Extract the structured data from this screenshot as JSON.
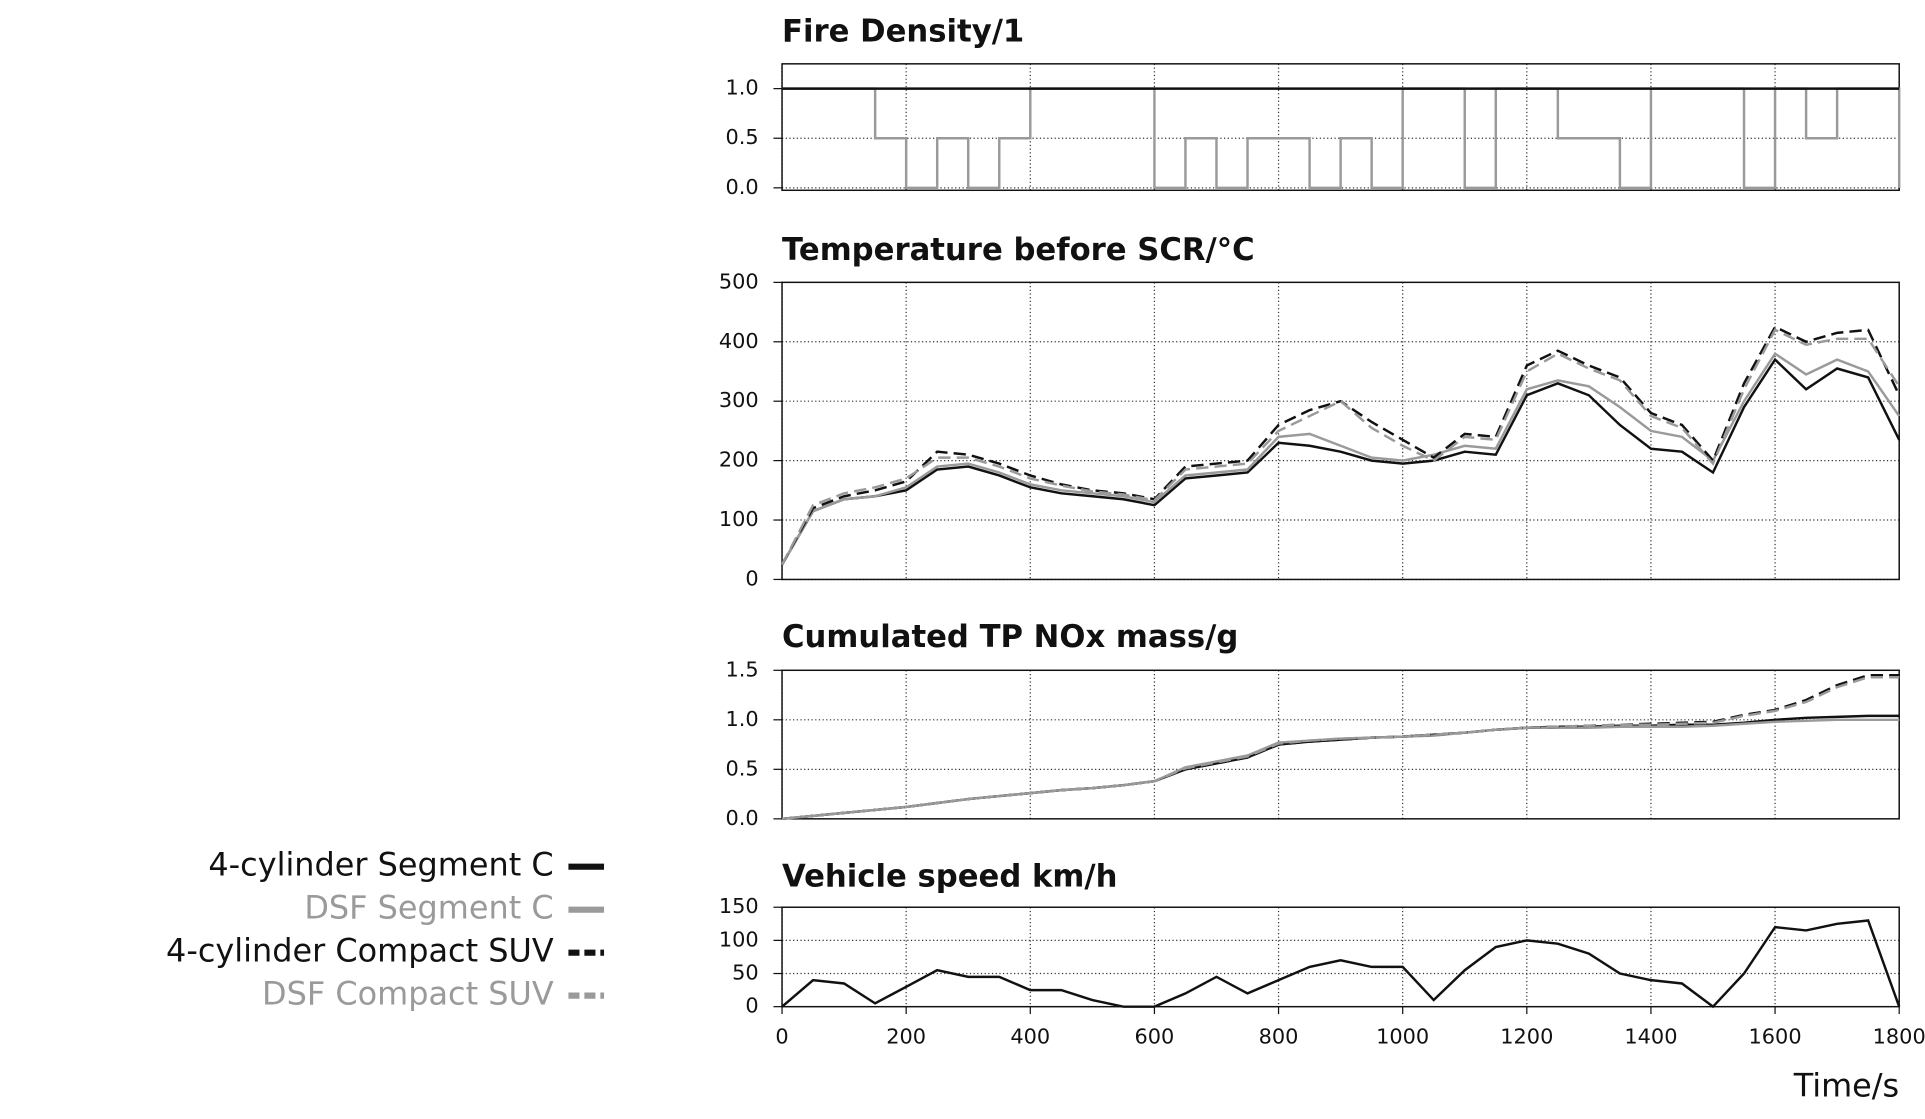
{
  "chart_data": {
    "type": "line",
    "xlabel": "Time/s",
    "xlim": [
      0,
      1800
    ],
    "xticks": [
      0,
      200,
      400,
      600,
      800,
      1000,
      1200,
      1400,
      1600,
      1800
    ],
    "grid": true,
    "charts": [
      {
        "title": "Fire Density/1",
        "ylim": [
          0,
          1.25
        ],
        "steps": true,
        "yticks": [
          {
            "value": 0,
            "label": "0.0"
          },
          {
            "value": 0.5,
            "label": "0.5"
          },
          {
            "value": 1,
            "label": "1.0"
          }
        ],
        "x": [
          0,
          50,
          100,
          150,
          200,
          250,
          300,
          350,
          400,
          450,
          500,
          550,
          600,
          650,
          700,
          750,
          800,
          850,
          900,
          950,
          1000,
          1050,
          1100,
          1150,
          1200,
          1250,
          1300,
          1350,
          1400,
          1450,
          1500,
          1550,
          1600,
          1650,
          1700,
          1750,
          1800
        ],
        "series": [
          {
            "color": "#9a9a9a",
            "dash": false,
            "values": [
              1,
              1,
              1,
              0.5,
              0,
              0.5,
              0,
              0.5,
              1,
              1,
              1,
              1,
              0,
              0.5,
              0,
              0.5,
              0.5,
              0,
              0.5,
              0,
              1,
              1,
              0,
              1,
              1,
              0.5,
              0.5,
              0,
              1,
              1,
              1,
              0,
              1,
              0.5,
              1,
              1,
              0
            ]
          },
          {
            "color": "#111111",
            "dash": false,
            "values": [
              1,
              1,
              1,
              1,
              1,
              1,
              1,
              1,
              1,
              1,
              1,
              1,
              1,
              1,
              1,
              1,
              1,
              1,
              1,
              1,
              1,
              1,
              1,
              1,
              1,
              1,
              1,
              1,
              1,
              1,
              1,
              1,
              1,
              1,
              1,
              1,
              1
            ]
          }
        ]
      },
      {
        "title": "Temperature before SCR/°C",
        "ylim": [
          0,
          500
        ],
        "yticks": [
          0,
          100,
          200,
          300,
          400,
          500
        ],
        "x": [
          0,
          50,
          100,
          150,
          200,
          250,
          300,
          350,
          400,
          450,
          500,
          550,
          600,
          650,
          700,
          750,
          800,
          850,
          900,
          950,
          1000,
          1050,
          1100,
          1150,
          1200,
          1250,
          1300,
          1350,
          1400,
          1450,
          1500,
          1550,
          1600,
          1650,
          1700,
          1750,
          1800
        ],
        "series": [
          {
            "name": "4-cylinder Segment C",
            "color": "#111111",
            "dash": false,
            "values": [
              25,
              115,
              135,
              140,
              150,
              185,
              190,
              175,
              155,
              145,
              140,
              135,
              125,
              170,
              175,
              180,
              230,
              225,
              215,
              200,
              195,
              200,
              215,
              210,
              310,
              330,
              310,
              260,
              220,
              215,
              180,
              290,
              370,
              320,
              355,
              340,
              235
            ]
          },
          {
            "name": "DSF Segment C",
            "color": "#9a9a9a",
            "dash": false,
            "values": [
              25,
              115,
              135,
              140,
              155,
              190,
              195,
              180,
              160,
              150,
              145,
              140,
              130,
              175,
              180,
              185,
              240,
              245,
              225,
              205,
              200,
              210,
              225,
              220,
              320,
              335,
              325,
              290,
              250,
              240,
              200,
              300,
              380,
              345,
              370,
              350,
              275
            ]
          },
          {
            "name": "4-cylinder Compact SUV",
            "color": "#111111",
            "dash": true,
            "values": [
              25,
              120,
              140,
              150,
              165,
              215,
              210,
              195,
              175,
              160,
              150,
              145,
              135,
              190,
              195,
              200,
              260,
              285,
              300,
              265,
              235,
              205,
              245,
              240,
              360,
              385,
              360,
              340,
              280,
              260,
              200,
              330,
              425,
              400,
              415,
              420,
              310
            ]
          },
          {
            "name": "DSF Compact SUV",
            "color": "#9a9a9a",
            "dash": true,
            "values": [
              25,
              125,
              145,
              155,
              170,
              205,
              205,
              190,
              170,
              158,
              148,
              143,
              133,
              185,
              190,
              195,
              250,
              275,
              300,
              255,
              225,
              200,
              240,
              235,
              350,
              380,
              355,
              335,
              275,
              255,
              195,
              320,
              420,
              395,
              405,
              405,
              325
            ]
          }
        ]
      },
      {
        "title": "Cumulated TP NOx mass/g",
        "ylim": [
          0,
          1.5
        ],
        "yticks": [
          {
            "value": 0,
            "label": "0.0"
          },
          {
            "value": 0.5,
            "label": "0.5"
          },
          {
            "value": 1,
            "label": "1.0"
          },
          {
            "value": 1.5,
            "label": "1.5"
          }
        ],
        "x": [
          0,
          50,
          100,
          150,
          200,
          250,
          300,
          350,
          400,
          450,
          500,
          550,
          600,
          650,
          700,
          750,
          800,
          850,
          900,
          950,
          1000,
          1050,
          1100,
          1150,
          1200,
          1250,
          1300,
          1350,
          1400,
          1450,
          1500,
          1550,
          1600,
          1650,
          1700,
          1750,
          1800
        ],
        "series": [
          {
            "color": "#111111",
            "dash": false,
            "values": [
              0,
              0.03,
              0.06,
              0.09,
              0.12,
              0.16,
              0.2,
              0.23,
              0.26,
              0.29,
              0.31,
              0.34,
              0.38,
              0.5,
              0.56,
              0.62,
              0.75,
              0.78,
              0.8,
              0.82,
              0.83,
              0.85,
              0.87,
              0.9,
              0.92,
              0.93,
              0.93,
              0.94,
              0.94,
              0.95,
              0.95,
              0.97,
              1.0,
              1.02,
              1.03,
              1.04,
              1.04
            ]
          },
          {
            "color": "#9a9a9a",
            "dash": false,
            "values": [
              0,
              0.03,
              0.06,
              0.09,
              0.12,
              0.16,
              0.2,
              0.23,
              0.26,
              0.29,
              0.31,
              0.34,
              0.38,
              0.52,
              0.58,
              0.64,
              0.77,
              0.79,
              0.81,
              0.82,
              0.83,
              0.84,
              0.87,
              0.9,
              0.92,
              0.92,
              0.92,
              0.93,
              0.93,
              0.93,
              0.94,
              0.96,
              0.98,
              0.99,
              1.0,
              1.0,
              1.0
            ]
          },
          {
            "color": "#111111",
            "dash": true,
            "values": [
              0,
              0.03,
              0.06,
              0.09,
              0.12,
              0.16,
              0.2,
              0.23,
              0.26,
              0.29,
              0.31,
              0.34,
              0.38,
              0.5,
              0.56,
              0.62,
              0.75,
              0.78,
              0.8,
              0.82,
              0.83,
              0.85,
              0.87,
              0.9,
              0.92,
              0.93,
              0.94,
              0.95,
              0.96,
              0.97,
              0.98,
              1.05,
              1.1,
              1.2,
              1.35,
              1.45,
              1.45
            ]
          },
          {
            "color": "#9a9a9a",
            "dash": true,
            "values": [
              0,
              0.03,
              0.06,
              0.09,
              0.12,
              0.16,
              0.2,
              0.23,
              0.26,
              0.29,
              0.31,
              0.34,
              0.38,
              0.51,
              0.57,
              0.63,
              0.76,
              0.79,
              0.81,
              0.82,
              0.83,
              0.85,
              0.87,
              0.9,
              0.92,
              0.93,
              0.94,
              0.95,
              0.95,
              0.96,
              0.97,
              1.04,
              1.09,
              1.18,
              1.33,
              1.43,
              1.43
            ]
          }
        ]
      },
      {
        "title": "Vehicle speed km/h",
        "ylim": [
          0,
          150
        ],
        "yticks": [
          0,
          50,
          100,
          150
        ],
        "x": [
          0,
          50,
          100,
          150,
          200,
          250,
          300,
          350,
          400,
          450,
          500,
          550,
          600,
          650,
          700,
          750,
          800,
          850,
          900,
          950,
          1000,
          1050,
          1100,
          1150,
          1200,
          1250,
          1300,
          1350,
          1400,
          1450,
          1500,
          1550,
          1600,
          1650,
          1700,
          1750,
          1800
        ],
        "series": [
          {
            "color": "#111111",
            "dash": false,
            "values": [
              0,
              40,
              35,
              5,
              30,
              55,
              45,
              45,
              25,
              25,
              10,
              0,
              0,
              20,
              45,
              20,
              40,
              60,
              70,
              60,
              60,
              10,
              55,
              90,
              100,
              95,
              80,
              50,
              40,
              35,
              0,
              50,
              120,
              115,
              125,
              130,
              0
            ]
          }
        ]
      }
    ]
  }
}
